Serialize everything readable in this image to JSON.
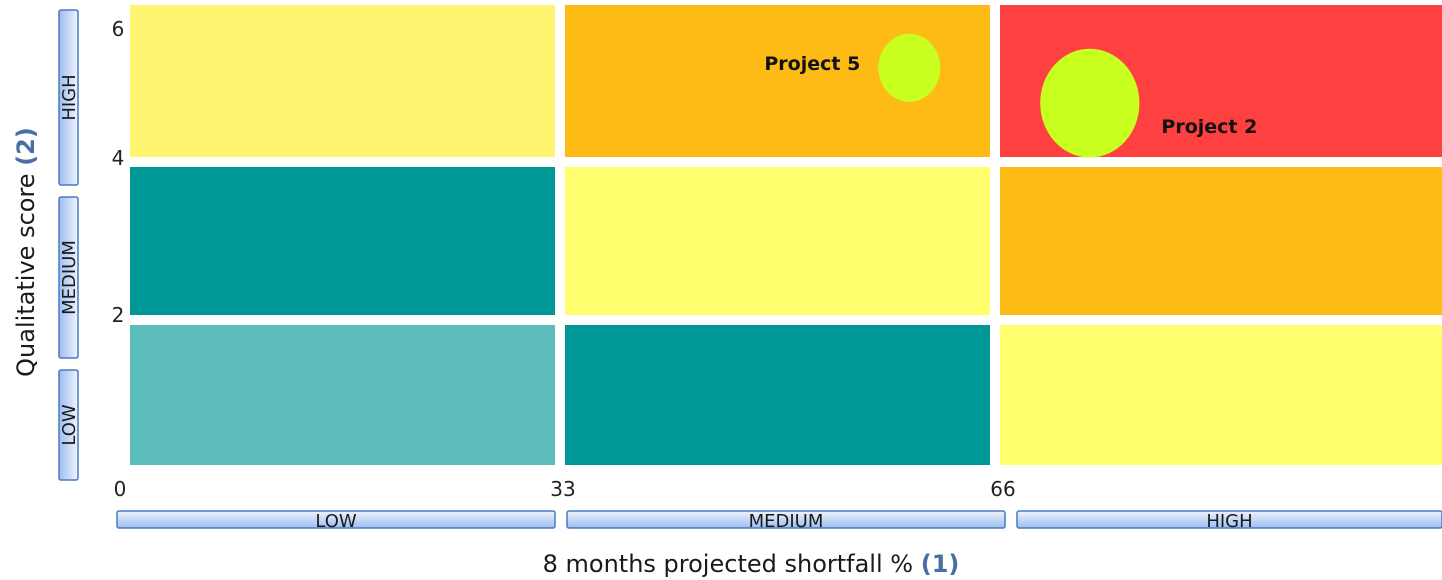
{
  "chart_data": {
    "type": "heatmap",
    "xlabel": "8 months projected shortfall %",
    "xlabel_ref": "(1)",
    "ylabel": "Qualitative score",
    "ylabel_ref": "(2)",
    "xlim": [
      0,
      99
    ],
    "ylim": [
      0,
      6
    ],
    "x_ticks": [
      "0",
      "33",
      "66"
    ],
    "y_ticks": [
      "2",
      "4",
      "6"
    ],
    "x_bands": [
      {
        "label": "LOW",
        "from": 0,
        "to": 33
      },
      {
        "label": "MEDIUM",
        "from": 33,
        "to": 66
      },
      {
        "label": "HIGH",
        "from": 66,
        "to": 99
      }
    ],
    "y_bands": [
      {
        "label": "LOW",
        "from": 0,
        "to": 2
      },
      {
        "label": "MEDIUM",
        "from": 2,
        "to": 4
      },
      {
        "label": "HIGH",
        "from": 4,
        "to": 6
      }
    ],
    "cells": [
      {
        "col": 0,
        "row": 0,
        "color": "#5bbcbb"
      },
      {
        "col": 1,
        "row": 0,
        "color": "#009897"
      },
      {
        "col": 2,
        "row": 0,
        "color": "#ffff6e"
      },
      {
        "col": 0,
        "row": 1,
        "color": "#009897"
      },
      {
        "col": 1,
        "row": 1,
        "color": "#ffff6e"
      },
      {
        "col": 2,
        "row": 1,
        "color": "#ffbb15"
      },
      {
        "col": 0,
        "row": 2,
        "color": "#fff570"
      },
      {
        "col": 1,
        "row": 2,
        "color": "#ffbb15"
      },
      {
        "col": 2,
        "row": 2,
        "color": "#ff4040"
      }
    ],
    "points": [
      {
        "label": "Project 5",
        "x": 59.5,
        "y": 5.2,
        "size": 1.0,
        "color": "#c8ff1e",
        "label_side": "left"
      },
      {
        "label": "Project 2",
        "x": 73,
        "y": 4.75,
        "size": 1.6,
        "color": "#c8ff1e",
        "label_side": "right"
      }
    ]
  }
}
